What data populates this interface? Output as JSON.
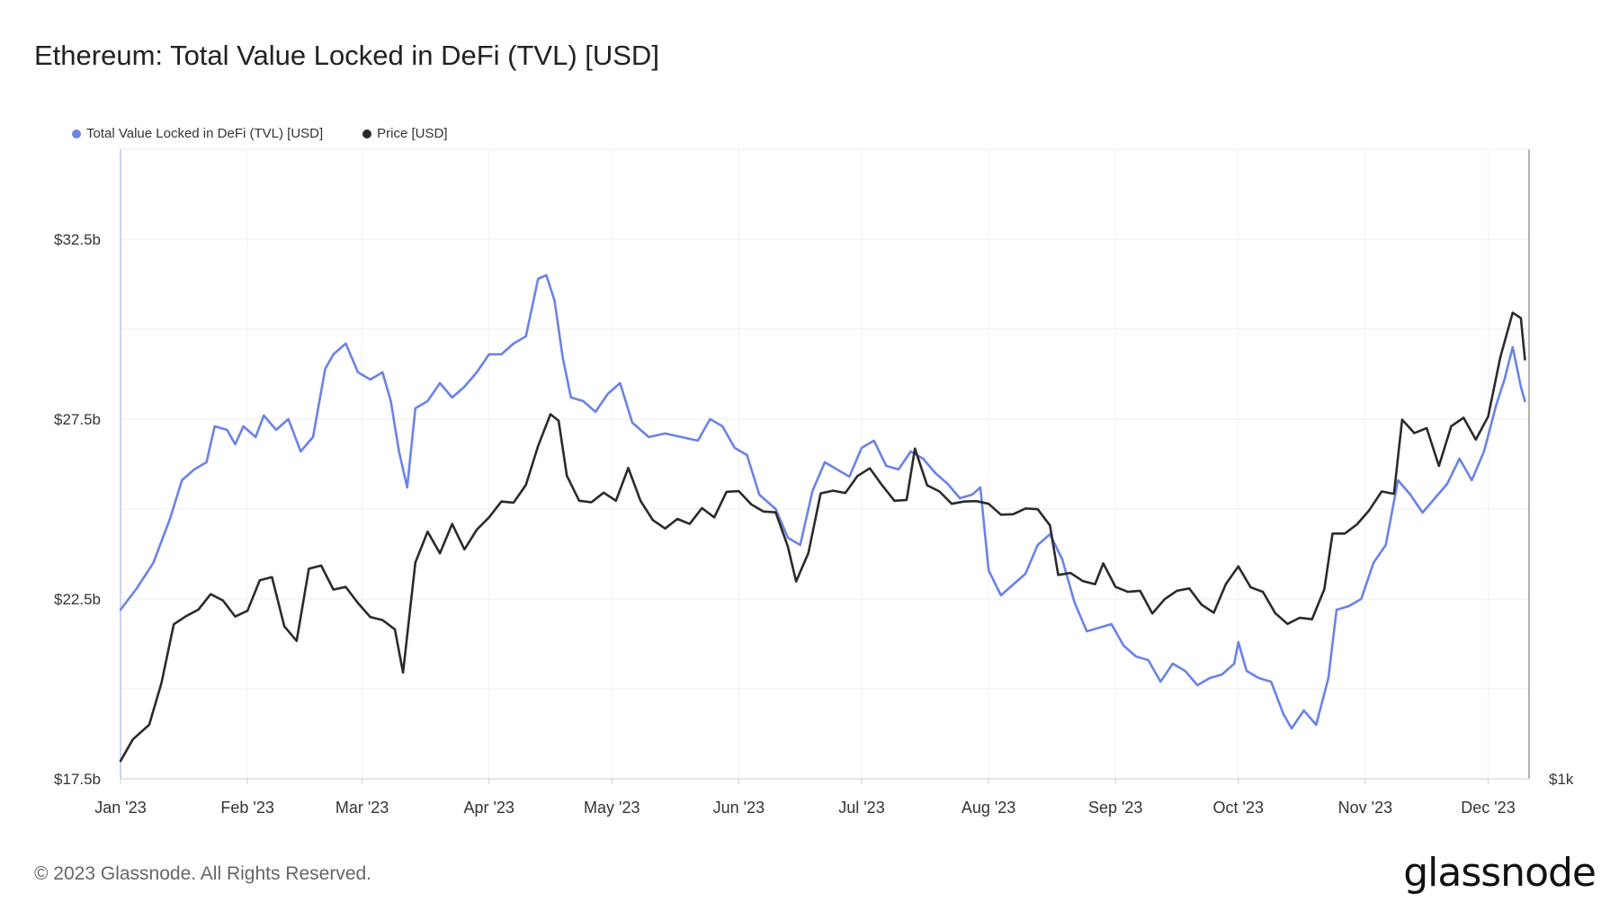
{
  "title": "Ethereum: Total Value Locked in DeFi (TVL) [USD]",
  "legend": [
    {
      "label": "Total Value Locked in DeFi (TVL) [USD]",
      "color": "#6a83e6"
    },
    {
      "label": "Price [USD]",
      "color": "#2b2b2b"
    }
  ],
  "footer": "© 2023 Glassnode. All Rights Reserved.",
  "brand": "glassnode",
  "chart_data": {
    "type": "line",
    "x_ticks": [
      "Jan '23",
      "Feb '23",
      "Mar '23",
      "Apr '23",
      "May '23",
      "Jun '23",
      "Jul '23",
      "Aug '23",
      "Sep '23",
      "Oct '23",
      "Nov '23",
      "Dec '23"
    ],
    "y_left_ticks": [
      "$32.5b",
      "$27.5b",
      "$22.5b",
      "$17.5b"
    ],
    "y_right_ticks": [
      "$1k"
    ],
    "y_left_range": [
      17.5,
      35
    ],
    "grid": true,
    "legend_position": "top-left",
    "series": [
      {
        "name": "Total Value Locked in DeFi (TVL) [USD]",
        "axis": "left",
        "unit": "billion USD",
        "color": "#6a83e6",
        "points": [
          [
            "2023-01-01",
            22.2
          ],
          [
            "2023-01-05",
            22.8
          ],
          [
            "2023-01-09",
            23.5
          ],
          [
            "2023-01-13",
            24.7
          ],
          [
            "2023-01-16",
            25.8
          ],
          [
            "2023-01-19",
            26.1
          ],
          [
            "2023-01-22",
            26.3
          ],
          [
            "2023-01-24",
            27.3
          ],
          [
            "2023-01-27",
            27.2
          ],
          [
            "2023-01-29",
            26.8
          ],
          [
            "2023-01-31",
            27.3
          ],
          [
            "2023-02-03",
            27.0
          ],
          [
            "2023-02-05",
            27.6
          ],
          [
            "2023-02-08",
            27.2
          ],
          [
            "2023-02-11",
            27.5
          ],
          [
            "2023-02-14",
            26.6
          ],
          [
            "2023-02-17",
            27.0
          ],
          [
            "2023-02-20",
            28.9
          ],
          [
            "2023-02-22",
            29.3
          ],
          [
            "2023-02-25",
            29.6
          ],
          [
            "2023-02-28",
            28.8
          ],
          [
            "2023-03-03",
            28.6
          ],
          [
            "2023-03-06",
            28.8
          ],
          [
            "2023-03-08",
            28.0
          ],
          [
            "2023-03-10",
            26.6
          ],
          [
            "2023-03-12",
            25.6
          ],
          [
            "2023-03-14",
            27.8
          ],
          [
            "2023-03-17",
            28.0
          ],
          [
            "2023-03-20",
            28.5
          ],
          [
            "2023-03-23",
            28.1
          ],
          [
            "2023-03-26",
            28.4
          ],
          [
            "2023-03-29",
            28.8
          ],
          [
            "2023-04-01",
            29.3
          ],
          [
            "2023-04-04",
            29.3
          ],
          [
            "2023-04-07",
            29.6
          ],
          [
            "2023-04-10",
            29.8
          ],
          [
            "2023-04-13",
            31.4
          ],
          [
            "2023-04-15",
            31.5
          ],
          [
            "2023-04-17",
            30.8
          ],
          [
            "2023-04-19",
            29.2
          ],
          [
            "2023-04-21",
            28.1
          ],
          [
            "2023-04-24",
            28.0
          ],
          [
            "2023-04-27",
            27.7
          ],
          [
            "2023-04-30",
            28.2
          ],
          [
            "2023-05-03",
            28.5
          ],
          [
            "2023-05-06",
            27.4
          ],
          [
            "2023-05-10",
            27.0
          ],
          [
            "2023-05-14",
            27.1
          ],
          [
            "2023-05-18",
            27.0
          ],
          [
            "2023-05-22",
            26.9
          ],
          [
            "2023-05-25",
            27.5
          ],
          [
            "2023-05-28",
            27.3
          ],
          [
            "2023-05-31",
            26.7
          ],
          [
            "2023-06-03",
            26.5
          ],
          [
            "2023-06-06",
            25.4
          ],
          [
            "2023-06-10",
            25.0
          ],
          [
            "2023-06-13",
            24.2
          ],
          [
            "2023-06-16",
            24.0
          ],
          [
            "2023-06-19",
            25.5
          ],
          [
            "2023-06-22",
            26.3
          ],
          [
            "2023-06-25",
            26.1
          ],
          [
            "2023-06-28",
            25.9
          ],
          [
            "2023-07-01",
            26.7
          ],
          [
            "2023-07-04",
            26.9
          ],
          [
            "2023-07-07",
            26.2
          ],
          [
            "2023-07-10",
            26.1
          ],
          [
            "2023-07-13",
            26.6
          ],
          [
            "2023-07-16",
            26.4
          ],
          [
            "2023-07-19",
            26.0
          ],
          [
            "2023-07-22",
            25.7
          ],
          [
            "2023-07-25",
            25.3
          ],
          [
            "2023-07-28",
            25.4
          ],
          [
            "2023-07-30",
            25.6
          ],
          [
            "2023-08-01",
            23.3
          ],
          [
            "2023-08-04",
            22.6
          ],
          [
            "2023-08-07",
            22.9
          ],
          [
            "2023-08-10",
            23.2
          ],
          [
            "2023-08-13",
            24.0
          ],
          [
            "2023-08-16",
            24.3
          ],
          [
            "2023-08-19",
            23.6
          ],
          [
            "2023-08-22",
            22.4
          ],
          [
            "2023-08-25",
            21.6
          ],
          [
            "2023-08-28",
            21.7
          ],
          [
            "2023-08-31",
            21.8
          ],
          [
            "2023-09-03",
            21.2
          ],
          [
            "2023-09-06",
            20.9
          ],
          [
            "2023-09-09",
            20.8
          ],
          [
            "2023-09-12",
            20.2
          ],
          [
            "2023-09-15",
            20.7
          ],
          [
            "2023-09-18",
            20.5
          ],
          [
            "2023-09-21",
            20.1
          ],
          [
            "2023-09-24",
            20.3
          ],
          [
            "2023-09-27",
            20.4
          ],
          [
            "2023-09-30",
            20.7
          ],
          [
            "2023-10-01",
            21.3
          ],
          [
            "2023-10-03",
            20.5
          ],
          [
            "2023-10-06",
            20.3
          ],
          [
            "2023-10-09",
            20.2
          ],
          [
            "2023-10-12",
            19.3
          ],
          [
            "2023-10-14",
            18.9
          ],
          [
            "2023-10-17",
            19.4
          ],
          [
            "2023-10-20",
            19.0
          ],
          [
            "2023-10-23",
            20.3
          ],
          [
            "2023-10-25",
            22.2
          ],
          [
            "2023-10-28",
            22.3
          ],
          [
            "2023-10-31",
            22.5
          ],
          [
            "2023-11-03",
            23.5
          ],
          [
            "2023-11-06",
            24.0
          ],
          [
            "2023-11-09",
            25.8
          ],
          [
            "2023-11-12",
            25.4
          ],
          [
            "2023-11-15",
            24.9
          ],
          [
            "2023-11-18",
            25.3
          ],
          [
            "2023-11-21",
            25.7
          ],
          [
            "2023-11-24",
            26.4
          ],
          [
            "2023-11-27",
            25.8
          ],
          [
            "2023-11-30",
            26.6
          ],
          [
            "2023-12-03",
            27.9
          ],
          [
            "2023-12-05",
            28.6
          ],
          [
            "2023-12-07",
            29.5
          ],
          [
            "2023-12-09",
            28.4
          ],
          [
            "2023-12-10",
            28.0
          ]
        ]
      },
      {
        "name": "Price [USD]",
        "axis": "right",
        "unit": "USD",
        "color": "#2b2b2b",
        "points": [
          [
            "2023-01-01",
            1196
          ],
          [
            "2023-01-04",
            1252
          ],
          [
            "2023-01-08",
            1290
          ],
          [
            "2023-01-11",
            1398
          ],
          [
            "2023-01-14",
            1550
          ],
          [
            "2023-01-17",
            1571
          ],
          [
            "2023-01-20",
            1588
          ],
          [
            "2023-01-23",
            1628
          ],
          [
            "2023-01-26",
            1612
          ],
          [
            "2023-01-29",
            1570
          ],
          [
            "2023-02-01",
            1585
          ],
          [
            "2023-02-04",
            1664
          ],
          [
            "2023-02-07",
            1672
          ],
          [
            "2023-02-10",
            1545
          ],
          [
            "2023-02-13",
            1507
          ],
          [
            "2023-02-16",
            1694
          ],
          [
            "2023-02-19",
            1702
          ],
          [
            "2023-02-22",
            1640
          ],
          [
            "2023-02-25",
            1647
          ],
          [
            "2023-02-28",
            1605
          ],
          [
            "2023-03-03",
            1569
          ],
          [
            "2023-03-06",
            1561
          ],
          [
            "2023-03-09",
            1537
          ],
          [
            "2023-03-11",
            1425
          ],
          [
            "2023-03-14",
            1710
          ],
          [
            "2023-03-17",
            1790
          ],
          [
            "2023-03-20",
            1734
          ],
          [
            "2023-03-23",
            1810
          ],
          [
            "2023-03-26",
            1744
          ],
          [
            "2023-03-29",
            1795
          ],
          [
            "2023-04-01",
            1827
          ],
          [
            "2023-04-04",
            1868
          ],
          [
            "2023-04-07",
            1865
          ],
          [
            "2023-04-10",
            1911
          ],
          [
            "2023-04-13",
            2012
          ],
          [
            "2023-04-16",
            2094
          ],
          [
            "2023-04-18",
            2077
          ],
          [
            "2023-04-20",
            1935
          ],
          [
            "2023-04-23",
            1870
          ],
          [
            "2023-04-26",
            1866
          ],
          [
            "2023-04-29",
            1891
          ],
          [
            "2023-05-02",
            1870
          ],
          [
            "2023-05-05",
            1955
          ],
          [
            "2023-05-08",
            1870
          ],
          [
            "2023-05-11",
            1820
          ],
          [
            "2023-05-14",
            1798
          ],
          [
            "2023-05-17",
            1823
          ],
          [
            "2023-05-20",
            1810
          ],
          [
            "2023-05-23",
            1851
          ],
          [
            "2023-05-26",
            1827
          ],
          [
            "2023-05-29",
            1893
          ],
          [
            "2023-06-01",
            1895
          ],
          [
            "2023-06-04",
            1861
          ],
          [
            "2023-06-07",
            1842
          ],
          [
            "2023-06-10",
            1840
          ],
          [
            "2023-06-13",
            1751
          ],
          [
            "2023-06-15",
            1661
          ],
          [
            "2023-06-18",
            1735
          ],
          [
            "2023-06-21",
            1889
          ],
          [
            "2023-06-24",
            1896
          ],
          [
            "2023-06-27",
            1890
          ],
          [
            "2023-06-30",
            1934
          ],
          [
            "2023-07-03",
            1954
          ],
          [
            "2023-07-06",
            1910
          ],
          [
            "2023-07-09",
            1870
          ],
          [
            "2023-07-12",
            1872
          ],
          [
            "2023-07-14",
            2005
          ],
          [
            "2023-07-17",
            1910
          ],
          [
            "2023-07-20",
            1894
          ],
          [
            "2023-07-23",
            1862
          ],
          [
            "2023-07-26",
            1868
          ],
          [
            "2023-07-29",
            1869
          ],
          [
            "2023-08-01",
            1862
          ],
          [
            "2023-08-04",
            1834
          ],
          [
            "2023-08-07",
            1835
          ],
          [
            "2023-08-10",
            1850
          ],
          [
            "2023-08-13",
            1848
          ],
          [
            "2023-08-16",
            1806
          ],
          [
            "2023-08-18",
            1678
          ],
          [
            "2023-08-21",
            1683
          ],
          [
            "2023-08-24",
            1662
          ],
          [
            "2023-08-27",
            1654
          ],
          [
            "2023-08-29",
            1708
          ],
          [
            "2023-09-01",
            1647
          ],
          [
            "2023-09-04",
            1634
          ],
          [
            "2023-09-07",
            1637
          ],
          [
            "2023-09-10",
            1578
          ],
          [
            "2023-09-13",
            1615
          ],
          [
            "2023-09-16",
            1637
          ],
          [
            "2023-09-19",
            1643
          ],
          [
            "2023-09-22",
            1601
          ],
          [
            "2023-09-25",
            1580
          ],
          [
            "2023-09-28",
            1655
          ],
          [
            "2023-10-01",
            1700
          ],
          [
            "2023-10-04",
            1646
          ],
          [
            "2023-10-07",
            1634
          ],
          [
            "2023-10-10",
            1579
          ],
          [
            "2023-10-13",
            1551
          ],
          [
            "2023-10-16",
            1567
          ],
          [
            "2023-10-19",
            1563
          ],
          [
            "2023-10-22",
            1641
          ],
          [
            "2023-10-24",
            1785
          ],
          [
            "2023-10-27",
            1785
          ],
          [
            "2023-10-30",
            1809
          ],
          [
            "2023-11-02",
            1846
          ],
          [
            "2023-11-05",
            1894
          ],
          [
            "2023-11-08",
            1888
          ],
          [
            "2023-11-10",
            2080
          ],
          [
            "2023-11-13",
            2045
          ],
          [
            "2023-11-16",
            2058
          ],
          [
            "2023-11-19",
            1960
          ],
          [
            "2023-11-22",
            2063
          ],
          [
            "2023-11-25",
            2085
          ],
          [
            "2023-11-28",
            2028
          ],
          [
            "2023-12-01",
            2088
          ],
          [
            "2023-12-04",
            2242
          ],
          [
            "2023-12-07",
            2357
          ],
          [
            "2023-12-09",
            2343
          ],
          [
            "2023-12-10",
            2236
          ]
        ]
      }
    ]
  }
}
